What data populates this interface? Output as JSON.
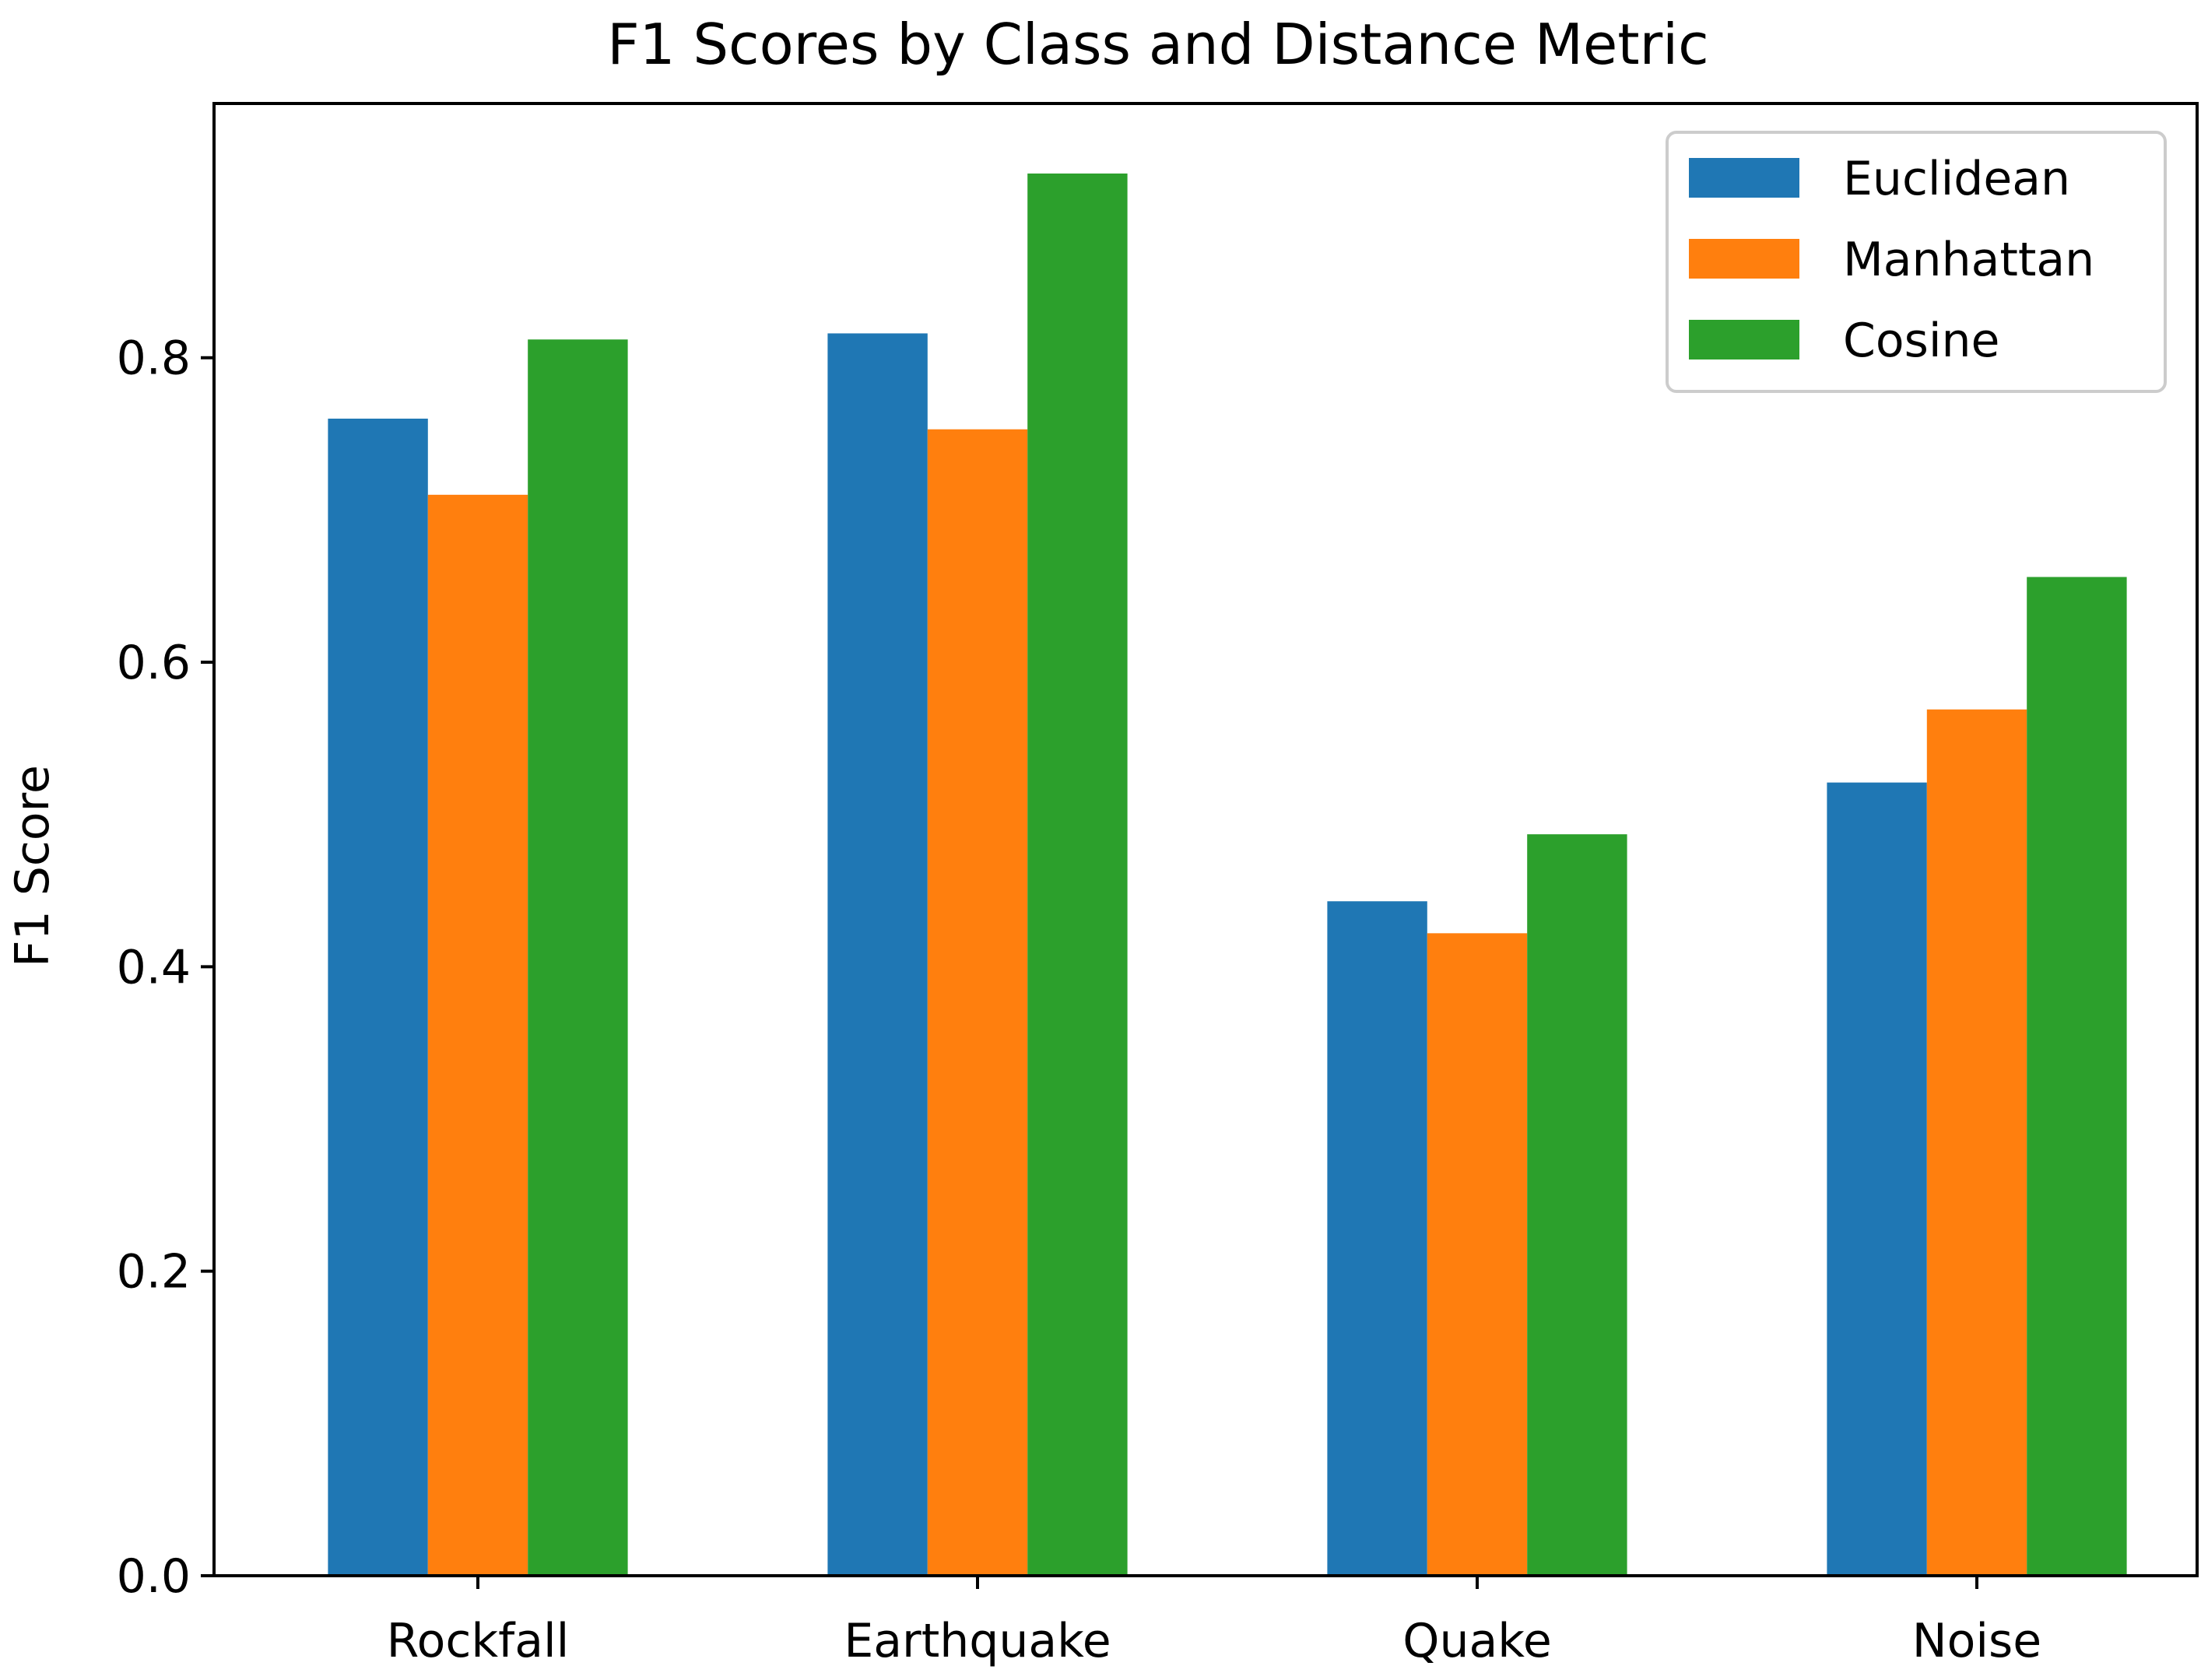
{
  "chart_data": {
    "type": "bar",
    "title": "F1 Scores by Class and Distance Metric",
    "xlabel": "",
    "ylabel": "F1 Score",
    "categories": [
      "Rockfall",
      "Earthquake",
      "Quake",
      "Noise"
    ],
    "series": [
      {
        "name": "Euclidean",
        "color": "#1f77b4",
        "values": [
          0.76,
          0.816,
          0.443,
          0.521
        ]
      },
      {
        "name": "Manhattan",
        "color": "#ff7f0e",
        "values": [
          0.71,
          0.753,
          0.422,
          0.569
        ]
      },
      {
        "name": "Cosine",
        "color": "#2ca02c",
        "values": [
          0.812,
          0.921,
          0.487,
          0.656
        ]
      }
    ],
    "ylim": [
      0,
      0.967
    ],
    "yticks": [
      0.0,
      0.2,
      0.4,
      0.6,
      0.8
    ],
    "ytick_labels": [
      "0.0",
      "0.2",
      "0.4",
      "0.6",
      "0.8"
    ],
    "grid": false,
    "legend_position": "top-right"
  }
}
